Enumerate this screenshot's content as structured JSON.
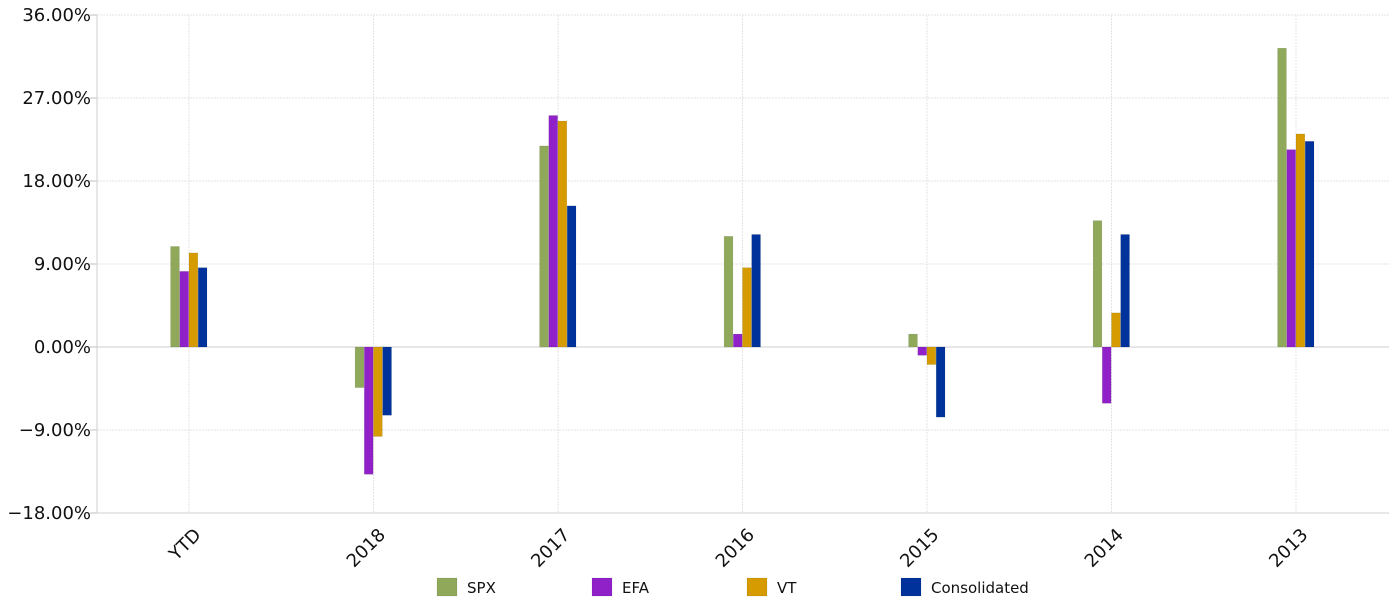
{
  "chart_data": {
    "type": "bar",
    "title": "",
    "xlabel": "",
    "ylabel": "",
    "categories": [
      "YTD",
      "2018",
      "2017",
      "2016",
      "2015",
      "2014",
      "2013"
    ],
    "series": [
      {
        "name": "SPX",
        "color": "#8fa85a",
        "values": [
          10.9,
          -4.4,
          21.8,
          12.0,
          1.4,
          13.7,
          32.4
        ]
      },
      {
        "name": "EFA",
        "color": "#9021c9",
        "values": [
          8.2,
          -13.8,
          25.1,
          1.4,
          -0.9,
          -6.1,
          21.4
        ]
      },
      {
        "name": "VT",
        "color": "#d59b00",
        "values": [
          10.2,
          -9.7,
          24.5,
          8.6,
          -1.9,
          3.7,
          23.1
        ]
      },
      {
        "name": "Consolidated",
        "color": "#00329b",
        "values": [
          8.6,
          -7.4,
          15.3,
          12.2,
          -7.6,
          12.2,
          22.3
        ]
      }
    ],
    "ylim": [
      -18,
      36
    ],
    "yticks": [
      -18,
      -9,
      0,
      9,
      18,
      27,
      36
    ],
    "ytick_labels": [
      "−18.00%",
      "−9.00%",
      "0.00%",
      "9.00%",
      "18.00%",
      "27.00%",
      "36.00%"
    ],
    "grid": true,
    "legend_position": "bottom"
  }
}
